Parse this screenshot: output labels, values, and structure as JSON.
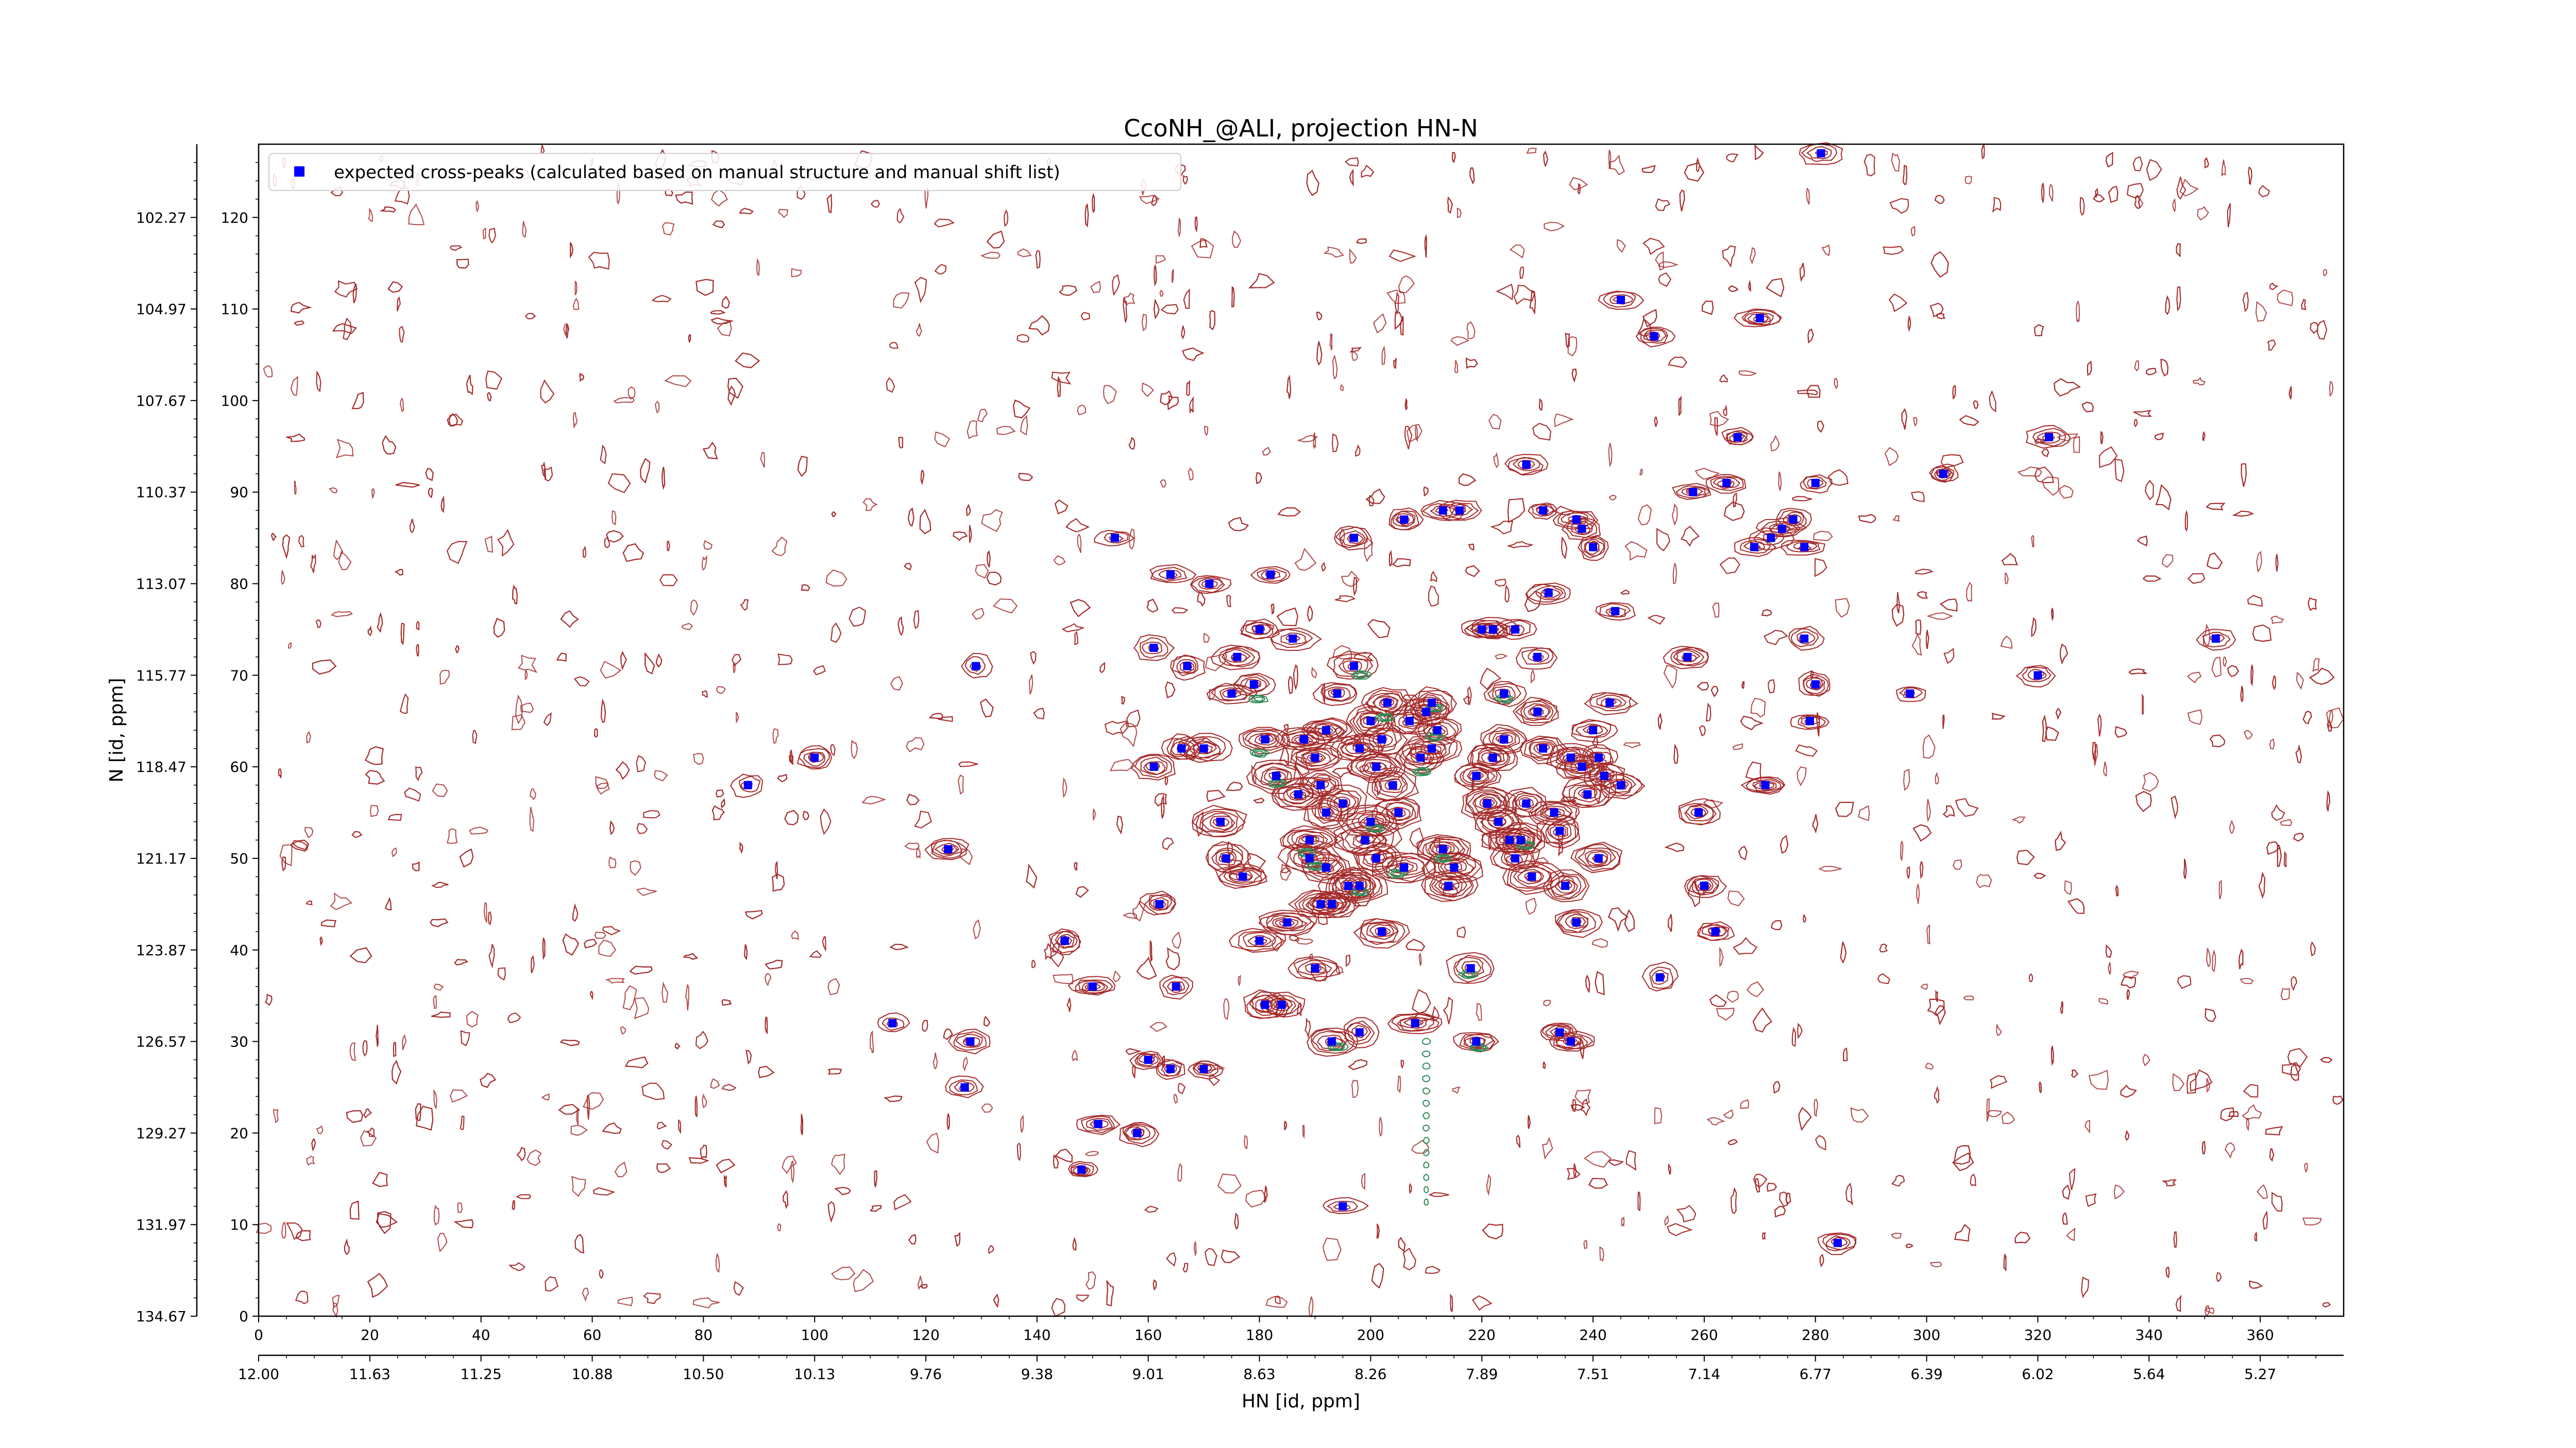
{
  "chart_data": {
    "type": "scatter",
    "title": "CcoNH_@ALI, projection HN-N",
    "xlabel": "HN [id, ppm]",
    "ylabel": "N [id, ppm]",
    "xlim": [
      0,
      375
    ],
    "ylim": [
      0,
      128
    ],
    "grid": false,
    "legend_placement": "top-left",
    "point_color": "#0000ff",
    "contour_colors": {
      "positive": "#a52a2a",
      "negative": "#2e8b57"
    },
    "x_ticks_index": [
      "0",
      "20",
      "40",
      "60",
      "80",
      "100",
      "120",
      "140",
      "160",
      "180",
      "200",
      "220",
      "240",
      "260",
      "280",
      "300",
      "320",
      "340",
      "360"
    ],
    "x_ticks_ppm": [
      "12.00",
      "11.63",
      "11.25",
      "10.88",
      "10.50",
      "10.13",
      "9.76",
      "9.38",
      "9.01",
      "8.63",
      "8.26",
      "7.89",
      "7.51",
      "7.14",
      "6.77",
      "6.39",
      "6.02",
      "5.64",
      "5.27"
    ],
    "y_ticks_index": [
      "0",
      "10",
      "20",
      "30",
      "40",
      "50",
      "60",
      "70",
      "80",
      "90",
      "100",
      "110",
      "120"
    ],
    "y_ticks_ppm": [
      "134.67",
      "131.97",
      "129.27",
      "126.57",
      "123.87",
      "121.17",
      "118.47",
      "115.77",
      "113.07",
      "110.37",
      "107.67",
      "104.97",
      "102.27"
    ],
    "series": [
      {
        "name": "expected cross-peaks (calculated based on manual structure and manual shift list)",
        "points": [
          [
            88,
            58
          ],
          [
            100,
            61
          ],
          [
            114,
            32
          ],
          [
            124,
            51
          ],
          [
            127,
            25
          ],
          [
            128,
            30
          ],
          [
            129,
            71
          ],
          [
            145,
            41
          ],
          [
            148,
            16
          ],
          [
            150,
            36
          ],
          [
            151,
            21
          ],
          [
            154,
            85
          ],
          [
            158,
            20
          ],
          [
            160,
            28
          ],
          [
            161,
            60
          ],
          [
            161,
            73
          ],
          [
            162,
            45
          ],
          [
            164,
            27
          ],
          [
            164,
            81
          ],
          [
            165,
            36
          ],
          [
            166,
            62
          ],
          [
            167,
            71
          ],
          [
            170,
            27
          ],
          [
            170,
            62
          ],
          [
            171,
            80
          ],
          [
            173,
            54
          ],
          [
            174,
            50
          ],
          [
            175,
            68
          ],
          [
            176,
            72
          ],
          [
            177,
            48
          ],
          [
            179,
            69
          ],
          [
            180,
            41
          ],
          [
            180,
            75
          ],
          [
            181,
            63
          ],
          [
            181,
            34
          ],
          [
            182,
            81
          ],
          [
            183,
            59
          ],
          [
            184,
            34
          ],
          [
            185,
            43
          ],
          [
            186,
            74
          ],
          [
            187,
            57
          ],
          [
            188,
            63
          ],
          [
            189,
            50
          ],
          [
            189,
            52
          ],
          [
            190,
            38
          ],
          [
            190,
            61
          ],
          [
            191,
            45
          ],
          [
            191,
            58
          ],
          [
            192,
            55
          ],
          [
            192,
            64
          ],
          [
            192,
            49
          ],
          [
            193,
            30
          ],
          [
            193,
            45
          ],
          [
            194,
            68
          ],
          [
            195,
            56
          ],
          [
            195,
            12
          ],
          [
            196,
            47
          ],
          [
            197,
            71
          ],
          [
            197,
            85
          ],
          [
            198,
            31
          ],
          [
            198,
            62
          ],
          [
            198,
            47
          ],
          [
            199,
            52
          ],
          [
            200,
            54
          ],
          [
            200,
            65
          ],
          [
            201,
            50
          ],
          [
            201,
            60
          ],
          [
            202,
            42
          ],
          [
            202,
            63
          ],
          [
            203,
            67
          ],
          [
            204,
            58
          ],
          [
            205,
            55
          ],
          [
            206,
            87
          ],
          [
            206,
            49
          ],
          [
            207,
            65
          ],
          [
            208,
            32
          ],
          [
            209,
            61
          ],
          [
            210,
            66
          ],
          [
            211,
            62
          ],
          [
            211,
            67
          ],
          [
            212,
            64
          ],
          [
            213,
            88
          ],
          [
            213,
            51
          ],
          [
            214,
            47
          ],
          [
            215,
            49
          ],
          [
            216,
            88
          ],
          [
            218,
            38
          ],
          [
            219,
            59
          ],
          [
            219,
            30
          ],
          [
            220,
            75
          ],
          [
            221,
            56
          ],
          [
            222,
            61
          ],
          [
            222,
            75
          ],
          [
            223,
            54
          ],
          [
            224,
            68
          ],
          [
            224,
            63
          ],
          [
            225,
            52
          ],
          [
            226,
            50
          ],
          [
            226,
            75
          ],
          [
            227,
            52
          ],
          [
            228,
            56
          ],
          [
            228,
            93
          ],
          [
            229,
            48
          ],
          [
            230,
            72
          ],
          [
            230,
            66
          ],
          [
            231,
            62
          ],
          [
            231,
            88
          ],
          [
            232,
            79
          ],
          [
            233,
            55
          ],
          [
            234,
            31
          ],
          [
            234,
            53
          ],
          [
            235,
            47
          ],
          [
            236,
            61
          ],
          [
            236,
            30
          ],
          [
            237,
            43
          ],
          [
            237,
            87
          ],
          [
            238,
            86
          ],
          [
            238,
            60
          ],
          [
            239,
            57
          ],
          [
            240,
            84
          ],
          [
            240,
            64
          ],
          [
            241,
            61
          ],
          [
            241,
            50
          ],
          [
            242,
            59
          ],
          [
            243,
            67
          ],
          [
            244,
            77
          ],
          [
            245,
            58
          ],
          [
            245,
            111
          ],
          [
            251,
            107
          ],
          [
            252,
            37
          ],
          [
            257,
            72
          ],
          [
            258,
            90
          ],
          [
            259,
            55
          ],
          [
            260,
            47
          ],
          [
            262,
            42
          ],
          [
            264,
            91
          ],
          [
            266,
            96
          ],
          [
            269,
            84
          ],
          [
            270,
            109
          ],
          [
            271,
            58
          ],
          [
            272,
            85
          ],
          [
            274,
            86
          ],
          [
            276,
            87
          ],
          [
            278,
            74
          ],
          [
            278,
            84
          ],
          [
            279,
            65
          ],
          [
            280,
            69
          ],
          [
            280,
            91
          ],
          [
            281,
            127
          ],
          [
            284,
            8
          ],
          [
            297,
            68
          ],
          [
            303,
            92
          ],
          [
            320,
            70
          ],
          [
            322,
            96
          ],
          [
            352,
            74
          ]
        ]
      }
    ]
  }
}
